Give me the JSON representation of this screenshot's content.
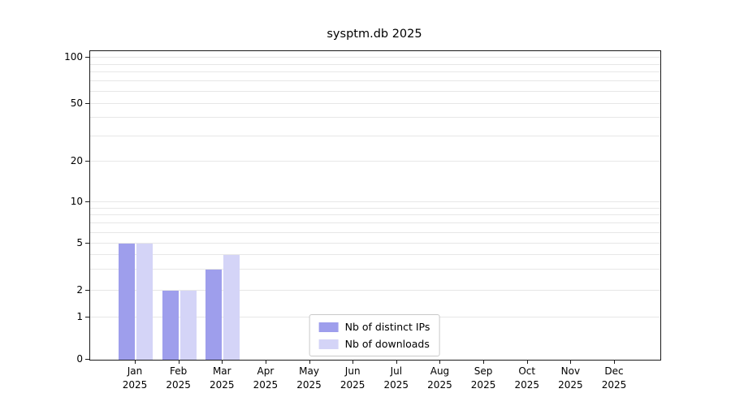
{
  "title": "sysptm.db 2025",
  "chart_data": {
    "type": "bar",
    "title": "sysptm.db 2025",
    "categories": [
      "Jan",
      "Feb",
      "Mar",
      "Apr",
      "May",
      "Jun",
      "Jul",
      "Aug",
      "Sep",
      "Oct",
      "Nov",
      "Dec"
    ],
    "category_year": "2025",
    "series": [
      {
        "name": "Nb of distinct IPs",
        "color": "#9e9eec",
        "values": [
          5,
          2,
          3,
          0,
          0,
          0,
          0,
          0,
          0,
          0,
          0,
          0
        ]
      },
      {
        "name": "Nb of downloads",
        "color": "#d4d4f7",
        "values": [
          5,
          2,
          4,
          0,
          0,
          0,
          0,
          0,
          0,
          0,
          0,
          0
        ]
      }
    ],
    "yticks": [
      0,
      1,
      2,
      5,
      10,
      20,
      50,
      100
    ],
    "ylim": [
      0,
      100
    ],
    "xlabel": "",
    "ylabel": "",
    "scale": "symlog",
    "grid": true,
    "legend_position": "bottom-center"
  }
}
